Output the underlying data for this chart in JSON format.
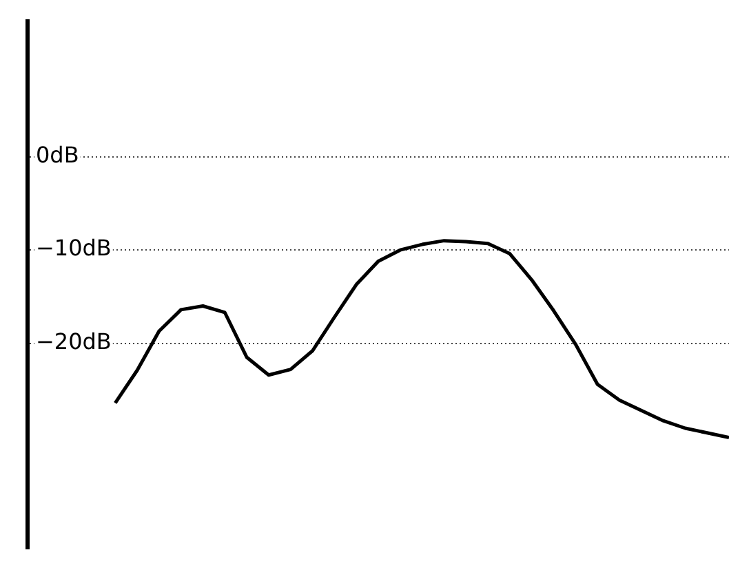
{
  "chart_data": {
    "type": "line",
    "categories": [
      null,
      null,
      null,
      null,
      null,
      null,
      null,
      null,
      null,
      null,
      null,
      null,
      null,
      null,
      null,
      null,
      null,
      null,
      null,
      null,
      null,
      null,
      null,
      null,
      null,
      null,
      null,
      null,
      null,
      null,
      null,
      null,
      null
    ],
    "values": [
      null,
      null,
      null,
      null,
      -26.4,
      -22.9,
      -18.7,
      -16.4,
      -16.0,
      -16.7,
      -21.5,
      -23.4,
      -22.8,
      -20.8,
      -17.2,
      -13.7,
      -11.2,
      -10.0,
      -9.4,
      -9.0,
      -9.1,
      -9.3,
      -10.4,
      -13.2,
      -16.5,
      -20.1,
      -24.4,
      -26.1,
      -27.2,
      -28.3,
      -29.1,
      -29.6,
      -30.1
    ],
    "color": "#000000",
    "ylim": [
      -42,
      14.5
    ],
    "yticks": [
      {
        "value": 0,
        "label": "0dB"
      },
      {
        "value": -10,
        "label": "−10dB"
      },
      {
        "value": -20,
        "label": "−20dB"
      }
    ],
    "grid": "y",
    "tick_labels": "y",
    "marker": "none",
    "line_style": "solid"
  }
}
